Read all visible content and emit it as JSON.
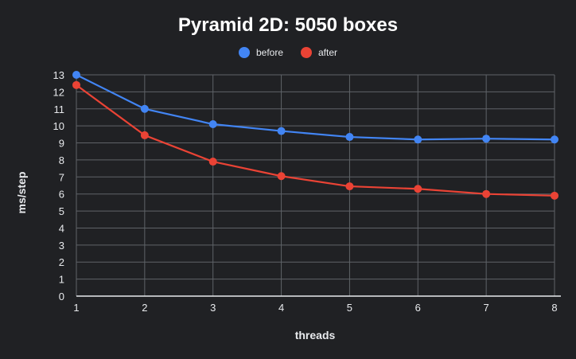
{
  "chart_data": {
    "type": "line",
    "title": "Pyramid 2D: 5050 boxes",
    "xlabel": "threads",
    "ylabel": "ms/step",
    "x": [
      1,
      2,
      3,
      4,
      5,
      6,
      7,
      8
    ],
    "x_tick_labels": [
      "1",
      "2",
      "3",
      "4",
      "5",
      "6",
      "7",
      "8"
    ],
    "y_tick_labels": [
      "0",
      "1",
      "2",
      "3",
      "4",
      "5",
      "6",
      "7",
      "8",
      "9",
      "10",
      "11",
      "12",
      "13"
    ],
    "ylim": [
      0,
      13
    ],
    "grid": true,
    "legend_position": "top-center",
    "series": [
      {
        "name": "before",
        "color": "#4285f4",
        "values": [
          13.0,
          11.0,
          10.1,
          9.7,
          9.35,
          9.2,
          9.25,
          9.2
        ]
      },
      {
        "name": "after",
        "color": "#ea4335",
        "values": [
          12.4,
          9.45,
          7.9,
          7.05,
          6.45,
          6.3,
          6.0,
          5.9
        ]
      }
    ]
  }
}
